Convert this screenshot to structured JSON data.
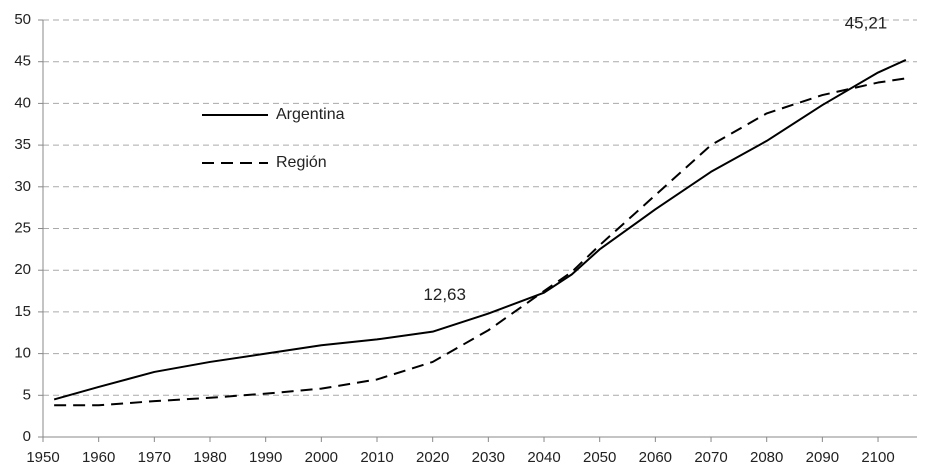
{
  "chart_data": {
    "type": "line",
    "x": [
      1952,
      1960,
      1970,
      1980,
      1990,
      2000,
      2010,
      2020,
      2030,
      2040,
      2045,
      2050,
      2060,
      2070,
      2080,
      2090,
      2100,
      2105
    ],
    "series": [
      {
        "name": "Argentina",
        "color": "#000000",
        "style": "solid",
        "values": [
          4.5,
          6.0,
          7.8,
          9.0,
          10.0,
          11.0,
          11.7,
          12.63,
          14.8,
          17.3,
          19.5,
          22.5,
          27.3,
          31.8,
          35.5,
          39.8,
          43.7,
          45.21
        ],
        "value_labels": [
          null,
          null,
          null,
          null,
          null,
          null,
          null,
          "12,63",
          null,
          null,
          null,
          null,
          null,
          null,
          null,
          null,
          null,
          "45,21"
        ]
      },
      {
        "name": "Región",
        "color": "#000000",
        "style": "dashed",
        "values": [
          3.8,
          3.8,
          4.3,
          4.7,
          5.2,
          5.8,
          6.9,
          9.0,
          12.8,
          17.5,
          19.8,
          23.0,
          29.0,
          35.0,
          38.8,
          41.0,
          42.5,
          43.0
        ]
      }
    ],
    "xlim": [
      1950,
      2107
    ],
    "xticks": [
      1950,
      1960,
      1970,
      1980,
      1990,
      2000,
      2010,
      2020,
      2030,
      2040,
      2050,
      2060,
      2070,
      2080,
      2090,
      2100
    ],
    "ylim": [
      0,
      50
    ],
    "yticks": [
      0,
      5,
      10,
      15,
      20,
      25,
      30,
      35,
      40,
      45,
      50
    ],
    "grid": true,
    "legend": "upper left"
  }
}
